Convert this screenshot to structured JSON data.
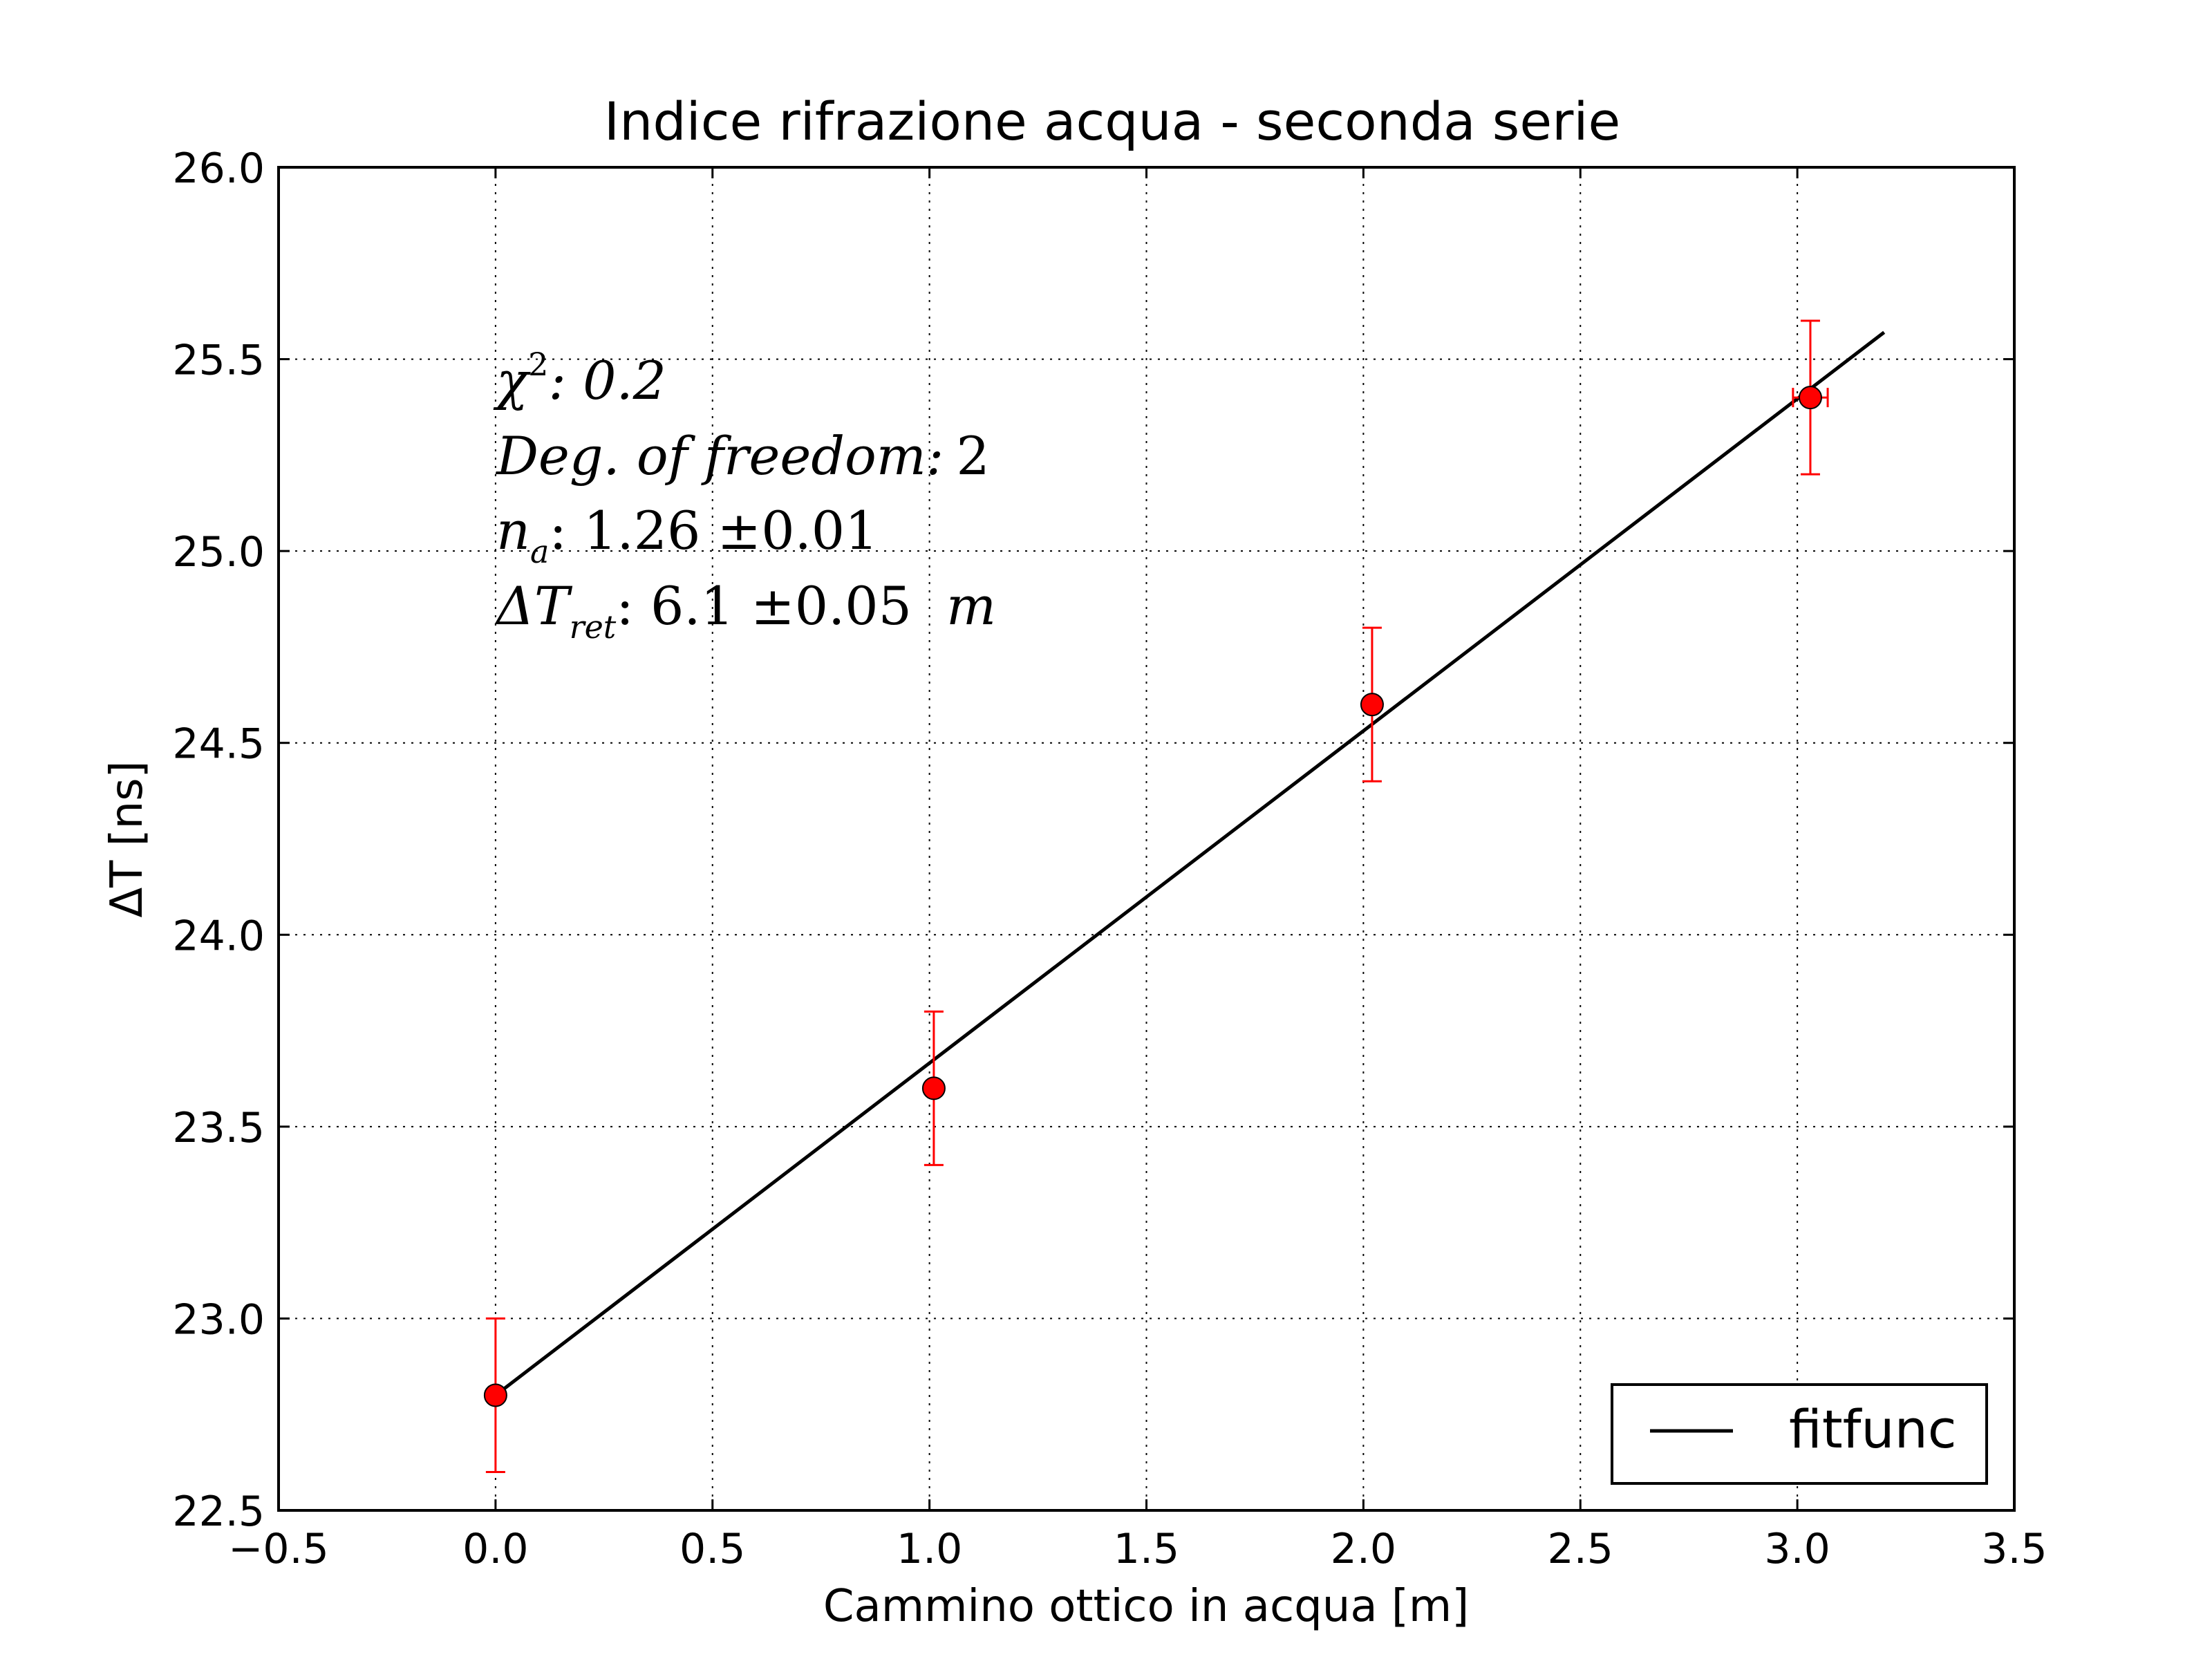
{
  "chart_data": {
    "type": "scatter",
    "title": "Indice rifrazione acqua - seconda serie",
    "xlabel": "Cammino ottico in acqua [m]",
    "ylabel": "ΔT [ns]",
    "xlim": [
      -0.5,
      3.5
    ],
    "ylim": [
      22.5,
      26.0
    ],
    "x_ticks": [
      -0.5,
      0.0,
      0.5,
      1.0,
      1.5,
      2.0,
      2.5,
      3.0,
      3.5
    ],
    "y_ticks": [
      22.5,
      23.0,
      23.5,
      24.0,
      24.5,
      25.0,
      25.5,
      26.0
    ],
    "x_tick_labels": [
      "−0.5",
      "0.0",
      "0.5",
      "1.0",
      "1.5",
      "2.0",
      "2.5",
      "3.0",
      "3.5"
    ],
    "y_tick_labels": [
      "22.5",
      "23.0",
      "23.5",
      "24.0",
      "24.5",
      "25.0",
      "25.5",
      "26.0"
    ],
    "grid": true,
    "points": [
      {
        "x": 0.0,
        "y": 22.8,
        "xerr": 0.0,
        "yerr": 0.2
      },
      {
        "x": 1.01,
        "y": 23.6,
        "xerr": 0.0,
        "yerr": 0.2
      },
      {
        "x": 2.02,
        "y": 24.6,
        "xerr": 0.0,
        "yerr": 0.2
      },
      {
        "x": 3.03,
        "y": 25.4,
        "xerr": 0.04,
        "yerr": 0.2
      }
    ],
    "fit": {
      "name": "fitfunc",
      "x": [
        0.0,
        3.2
      ],
      "y": [
        22.8,
        25.57
      ]
    },
    "legend": {
      "placement": "lower-right",
      "entries": [
        "fitfunc"
      ]
    },
    "annotations": {
      "chi2_label": "χ",
      "chi2_sup": "2",
      "chi2_value": ": 0.2",
      "dof_label": "Deg. of freedom:",
      "dof_value": "2",
      "na_label": "n",
      "na_sub": "a",
      "na_value": ": 1.26 ±0.01",
      "dt_label": "ΔT",
      "dt_sub": "ret",
      "dt_value": ": 6.1 ±0.05",
      "dt_unit": "m"
    },
    "colors": {
      "points": "#ff0000",
      "fit": "#000000",
      "grid": "#000000",
      "errorbar": "#ff0000"
    }
  }
}
